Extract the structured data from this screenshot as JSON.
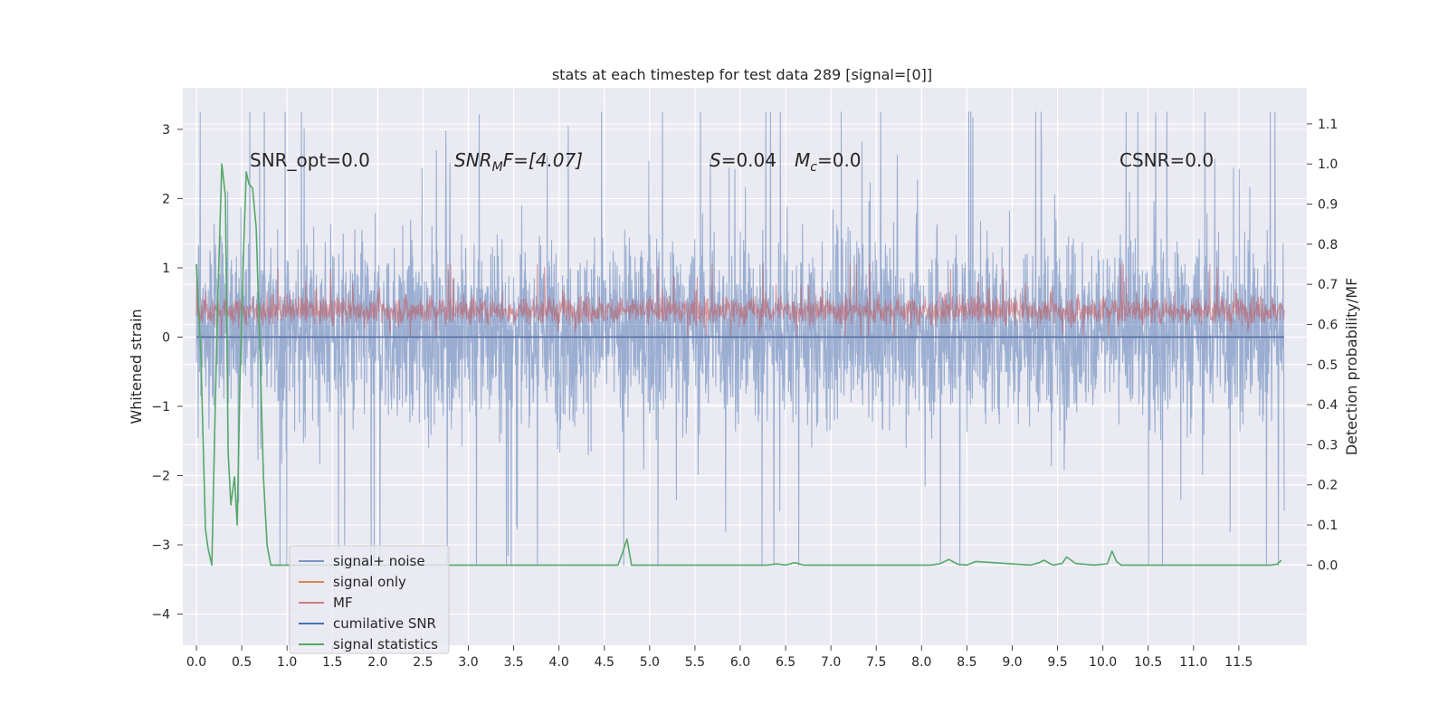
{
  "chart_data": {
    "type": "line",
    "title": "stats at each timestep for test data 289 [signal=[0]]",
    "xlabel": "",
    "ylabel": "Whitened strain",
    "y2label": "Detection probability/MF",
    "xlim": [
      -0.15,
      12.25
    ],
    "ylim": [
      -4.45,
      3.6
    ],
    "y2lim": [
      -0.2,
      1.19
    ],
    "x_ticks": [
      0.0,
      0.5,
      1.0,
      1.5,
      2.0,
      2.5,
      3.0,
      3.5,
      4.0,
      4.5,
      5.0,
      5.5,
      6.0,
      6.5,
      7.0,
      7.5,
      8.0,
      8.5,
      9.0,
      9.5,
      10.0,
      10.5,
      11.0,
      11.5
    ],
    "x_tick_labels": [
      "0.0",
      "0.5",
      "1.0",
      "1.5",
      "2.0",
      "2.5",
      "3.0",
      "3.5",
      "4.0",
      "4.5",
      "5.0",
      "5.5",
      "6.0",
      "6.5",
      "7.0",
      "7.5",
      "8.0",
      "8.5",
      "9.0",
      "9.5",
      "10.0",
      "10.5",
      "11.0",
      "11.5"
    ],
    "y_ticks": [
      3,
      2,
      1,
      0,
      -1,
      -2,
      -3,
      -4
    ],
    "y_tick_labels": [
      "3",
      "2",
      "1",
      "0",
      "−1",
      "−2",
      "−3",
      "−4"
    ],
    "y2_ticks": [
      1.1,
      1.0,
      0.9,
      0.8,
      0.7,
      0.6,
      0.5,
      0.4,
      0.3,
      0.2,
      0.1,
      0.0
    ],
    "y2_tick_labels": [
      "1.1",
      "1.0",
      "0.9",
      "0.8",
      "0.7",
      "0.6",
      "0.5",
      "0.4",
      "0.3",
      "0.2",
      "0.1",
      "0.0"
    ],
    "grid": true,
    "background": "#eaeaf2",
    "legend_position": "lower-left",
    "annotations": {
      "snr_opt": "SNR_opt=0.0",
      "snr_mf_main": "SNR",
      "snr_mf_sub": "M",
      "snr_mf_rest": "F=[4.07]",
      "s_main": "S",
      "s_rest": "=0.04",
      "mc_main": "M",
      "mc_sub": "c",
      "mc_rest": "=0.0",
      "csnr": "CSNR=0.0"
    },
    "series": [
      {
        "name": "signal+ noise",
        "color": "#4c72b0",
        "opacity": 0.5,
        "axis": "left",
        "style": "noise-band",
        "x_range": [
          0.0,
          12.0
        ],
        "center": 0.1,
        "typical_range": [
          -1.6,
          1.8
        ],
        "extremes": [
          -3.3,
          3.25
        ]
      },
      {
        "name": "signal only",
        "color": "#dd8452",
        "axis": "left",
        "style": "flat",
        "x_range": [
          0.0,
          12.0
        ],
        "value": 0.0
      },
      {
        "name": "MF",
        "color": "#c44e52",
        "opacity": 0.5,
        "axis": "right",
        "style": "noise-band",
        "x_range": [
          0.0,
          12.0
        ],
        "typical_range": [
          0.59,
          0.68
        ],
        "extremes": [
          0.57,
          0.75
        ]
      },
      {
        "name": "cumilative SNR",
        "color": "#4c72b0",
        "axis": "left",
        "style": "flat",
        "x_range": [
          0.0,
          12.0
        ],
        "value": 0.0
      },
      {
        "name": "signal statistics",
        "color": "#55a868",
        "axis": "right",
        "style": "line",
        "x": [
          0.0,
          0.05,
          0.1,
          0.13,
          0.17,
          0.2,
          0.23,
          0.28,
          0.32,
          0.35,
          0.38,
          0.42,
          0.45,
          0.48,
          0.52,
          0.55,
          0.58,
          0.62,
          0.66,
          0.7,
          0.74,
          0.78,
          0.82,
          0.9,
          4.6,
          4.65,
          4.7,
          4.75,
          4.8,
          6.3,
          6.4,
          6.5,
          6.6,
          6.7,
          8.1,
          8.2,
          8.3,
          8.4,
          8.5,
          8.6,
          9.2,
          9.3,
          9.35,
          9.45,
          9.55,
          9.6,
          9.7,
          9.9,
          10.05,
          10.1,
          10.15,
          10.2,
          11.85,
          11.92,
          11.97
        ],
        "y": [
          0.75,
          0.52,
          0.09,
          0.04,
          0.0,
          0.32,
          0.62,
          1.0,
          0.92,
          0.28,
          0.15,
          0.22,
          0.1,
          0.45,
          0.78,
          0.98,
          0.95,
          0.94,
          0.84,
          0.55,
          0.22,
          0.05,
          0.0,
          0.0,
          0.0,
          0.0,
          0.03,
          0.065,
          0.0,
          0.0,
          0.003,
          0.0,
          0.006,
          0.0,
          0.0,
          0.003,
          0.014,
          0.002,
          0.0,
          0.009,
          0.0,
          0.006,
          0.012,
          0.0,
          0.004,
          0.02,
          0.004,
          0.0,
          0.003,
          0.035,
          0.009,
          0.0,
          0.0,
          0.002,
          0.012
        ]
      }
    ]
  }
}
